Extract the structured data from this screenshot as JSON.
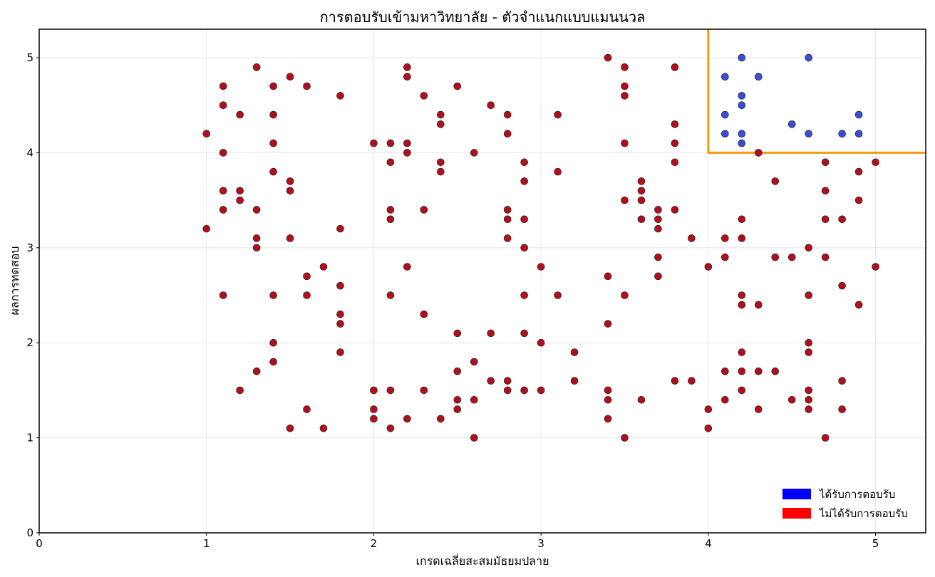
{
  "chart_data": {
    "type": "scatter",
    "title": "การตอบรับเข้ามหาวิทยาลัย - ตัวจำแนกแบบแมนนวล",
    "xlabel": "เกรดเฉลี่ยสะสมมัธยมปลาย",
    "ylabel": "ผลการทดสอบ",
    "xlim": [
      0,
      5.3
    ],
    "ylim": [
      0,
      5.3
    ],
    "xticks": [
      "0",
      "1",
      "2",
      "3",
      "4",
      "5"
    ],
    "yticks": [
      "0",
      "1",
      "2",
      "3",
      "4",
      "5"
    ],
    "grid": true,
    "legend_position": "bottom-right",
    "decision_boundary": {
      "x": 4.0,
      "y": 4.0,
      "color": "#f39c12"
    },
    "series": [
      {
        "name": "ได้รับการตอบรับ",
        "legend_color": "#0000ff",
        "point_color": "#3a4fcf",
        "points": [
          [
            4.1,
            4.8
          ],
          [
            4.2,
            5.0
          ],
          [
            4.3,
            4.8
          ],
          [
            4.6,
            5.0
          ],
          [
            4.1,
            4.4
          ],
          [
            4.2,
            4.6
          ],
          [
            4.2,
            4.5
          ],
          [
            4.1,
            4.2
          ],
          [
            4.2,
            4.2
          ],
          [
            4.2,
            4.1
          ],
          [
            4.5,
            4.3
          ],
          [
            4.6,
            4.2
          ],
          [
            4.8,
            4.2
          ],
          [
            4.9,
            4.4
          ],
          [
            4.9,
            4.2
          ]
        ]
      },
      {
        "name": "ไม่ได้รับการตอบรับ",
        "legend_color": "#ff0000",
        "point_color": "#b0101e",
        "points": [
          [
            1.0,
            4.2
          ],
          [
            1.0,
            3.2
          ],
          [
            1.1,
            4.7
          ],
          [
            1.1,
            4.5
          ],
          [
            1.1,
            4.0
          ],
          [
            1.1,
            3.6
          ],
          [
            1.1,
            3.4
          ],
          [
            1.1,
            2.5
          ],
          [
            1.2,
            4.4
          ],
          [
            1.2,
            3.6
          ],
          [
            1.2,
            3.5
          ],
          [
            1.2,
            1.5
          ],
          [
            1.3,
            4.9
          ],
          [
            1.3,
            3.4
          ],
          [
            1.3,
            3.1
          ],
          [
            1.3,
            3.0
          ],
          [
            1.3,
            1.7
          ],
          [
            1.4,
            4.7
          ],
          [
            1.4,
            4.4
          ],
          [
            1.4,
            4.1
          ],
          [
            1.4,
            3.8
          ],
          [
            1.4,
            2.5
          ],
          [
            1.4,
            2.0
          ],
          [
            1.4,
            1.8
          ],
          [
            1.5,
            4.8
          ],
          [
            1.5,
            3.7
          ],
          [
            1.5,
            3.6
          ],
          [
            1.5,
            3.1
          ],
          [
            1.5,
            1.1
          ],
          [
            1.6,
            4.7
          ],
          [
            1.6,
            2.7
          ],
          [
            1.6,
            2.5
          ],
          [
            1.6,
            1.3
          ],
          [
            1.7,
            2.8
          ],
          [
            1.7,
            1.1
          ],
          [
            1.8,
            4.6
          ],
          [
            1.8,
            3.2
          ],
          [
            1.8,
            2.6
          ],
          [
            1.8,
            2.3
          ],
          [
            1.8,
            2.2
          ],
          [
            1.8,
            1.9
          ],
          [
            2.0,
            4.1
          ],
          [
            2.0,
            1.5
          ],
          [
            2.0,
            1.3
          ],
          [
            2.0,
            1.2
          ],
          [
            2.1,
            4.1
          ],
          [
            2.1,
            3.9
          ],
          [
            2.1,
            3.4
          ],
          [
            2.1,
            3.3
          ],
          [
            2.1,
            2.5
          ],
          [
            2.1,
            1.5
          ],
          [
            2.1,
            1.1
          ],
          [
            2.2,
            4.9
          ],
          [
            2.2,
            4.8
          ],
          [
            2.2,
            4.1
          ],
          [
            2.2,
            4.0
          ],
          [
            2.2,
            2.8
          ],
          [
            2.2,
            1.2
          ],
          [
            2.3,
            4.6
          ],
          [
            2.3,
            3.4
          ],
          [
            2.3,
            2.3
          ],
          [
            2.3,
            1.5
          ],
          [
            2.4,
            4.4
          ],
          [
            2.4,
            4.3
          ],
          [
            2.4,
            3.9
          ],
          [
            2.4,
            3.8
          ],
          [
            2.4,
            1.2
          ],
          [
            2.5,
            4.7
          ],
          [
            2.5,
            2.1
          ],
          [
            2.5,
            1.7
          ],
          [
            2.5,
            1.4
          ],
          [
            2.5,
            1.3
          ],
          [
            2.6,
            4.0
          ],
          [
            2.6,
            1.8
          ],
          [
            2.6,
            1.4
          ],
          [
            2.6,
            1.0
          ],
          [
            2.7,
            4.5
          ],
          [
            2.7,
            2.1
          ],
          [
            2.7,
            1.6
          ],
          [
            2.8,
            4.4
          ],
          [
            2.8,
            4.2
          ],
          [
            2.8,
            3.4
          ],
          [
            2.8,
            3.3
          ],
          [
            2.8,
            3.1
          ],
          [
            2.8,
            1.6
          ],
          [
            2.8,
            1.5
          ],
          [
            2.9,
            3.9
          ],
          [
            2.9,
            3.7
          ],
          [
            2.9,
            3.3
          ],
          [
            2.9,
            3.0
          ],
          [
            2.9,
            2.5
          ],
          [
            2.9,
            2.1
          ],
          [
            2.9,
            1.5
          ],
          [
            3.0,
            2.8
          ],
          [
            3.0,
            2.0
          ],
          [
            3.0,
            1.5
          ],
          [
            3.1,
            4.4
          ],
          [
            3.1,
            3.8
          ],
          [
            3.1,
            2.5
          ],
          [
            3.2,
            1.9
          ],
          [
            3.2,
            1.6
          ],
          [
            3.4,
            5.0
          ],
          [
            3.4,
            2.7
          ],
          [
            3.4,
            2.2
          ],
          [
            3.4,
            1.5
          ],
          [
            3.4,
            1.4
          ],
          [
            3.4,
            1.2
          ],
          [
            3.5,
            4.9
          ],
          [
            3.5,
            4.7
          ],
          [
            3.5,
            4.6
          ],
          [
            3.5,
            4.1
          ],
          [
            3.5,
            3.5
          ],
          [
            3.5,
            2.5
          ],
          [
            3.5,
            1.0
          ],
          [
            3.6,
            3.7
          ],
          [
            3.6,
            3.6
          ],
          [
            3.6,
            3.5
          ],
          [
            3.6,
            3.3
          ],
          [
            3.6,
            1.4
          ],
          [
            3.7,
            3.4
          ],
          [
            3.7,
            3.3
          ],
          [
            3.7,
            3.2
          ],
          [
            3.7,
            2.9
          ],
          [
            3.7,
            2.7
          ],
          [
            3.8,
            4.9
          ],
          [
            3.8,
            4.3
          ],
          [
            3.8,
            4.1
          ],
          [
            3.8,
            3.9
          ],
          [
            3.8,
            3.4
          ],
          [
            3.8,
            1.6
          ],
          [
            3.9,
            3.1
          ],
          [
            3.9,
            1.6
          ],
          [
            4.0,
            2.8
          ],
          [
            4.0,
            1.3
          ],
          [
            4.0,
            1.1
          ],
          [
            4.1,
            3.1
          ],
          [
            4.1,
            2.9
          ],
          [
            4.1,
            1.7
          ],
          [
            4.1,
            1.4
          ],
          [
            4.2,
            3.3
          ],
          [
            4.2,
            3.1
          ],
          [
            4.2,
            2.5
          ],
          [
            4.2,
            2.4
          ],
          [
            4.2,
            1.9
          ],
          [
            4.2,
            1.7
          ],
          [
            4.2,
            1.5
          ],
          [
            4.3,
            4.0
          ],
          [
            4.3,
            2.4
          ],
          [
            4.3,
            1.7
          ],
          [
            4.3,
            1.3
          ],
          [
            4.4,
            3.7
          ],
          [
            4.4,
            2.9
          ],
          [
            4.4,
            1.7
          ],
          [
            4.5,
            2.9
          ],
          [
            4.5,
            1.4
          ],
          [
            4.6,
            3.0
          ],
          [
            4.6,
            2.5
          ],
          [
            4.6,
            2.0
          ],
          [
            4.6,
            1.9
          ],
          [
            4.6,
            1.5
          ],
          [
            4.6,
            1.4
          ],
          [
            4.6,
            1.3
          ],
          [
            4.7,
            3.9
          ],
          [
            4.7,
            3.6
          ],
          [
            4.7,
            3.3
          ],
          [
            4.7,
            2.9
          ],
          [
            4.7,
            1.0
          ],
          [
            4.8,
            3.3
          ],
          [
            4.8,
            2.6
          ],
          [
            4.8,
            1.6
          ],
          [
            4.8,
            1.3
          ],
          [
            4.9,
            3.8
          ],
          [
            4.9,
            3.5
          ],
          [
            4.9,
            2.4
          ],
          [
            5.0,
            3.9
          ],
          [
            5.0,
            2.8
          ]
        ]
      }
    ]
  }
}
